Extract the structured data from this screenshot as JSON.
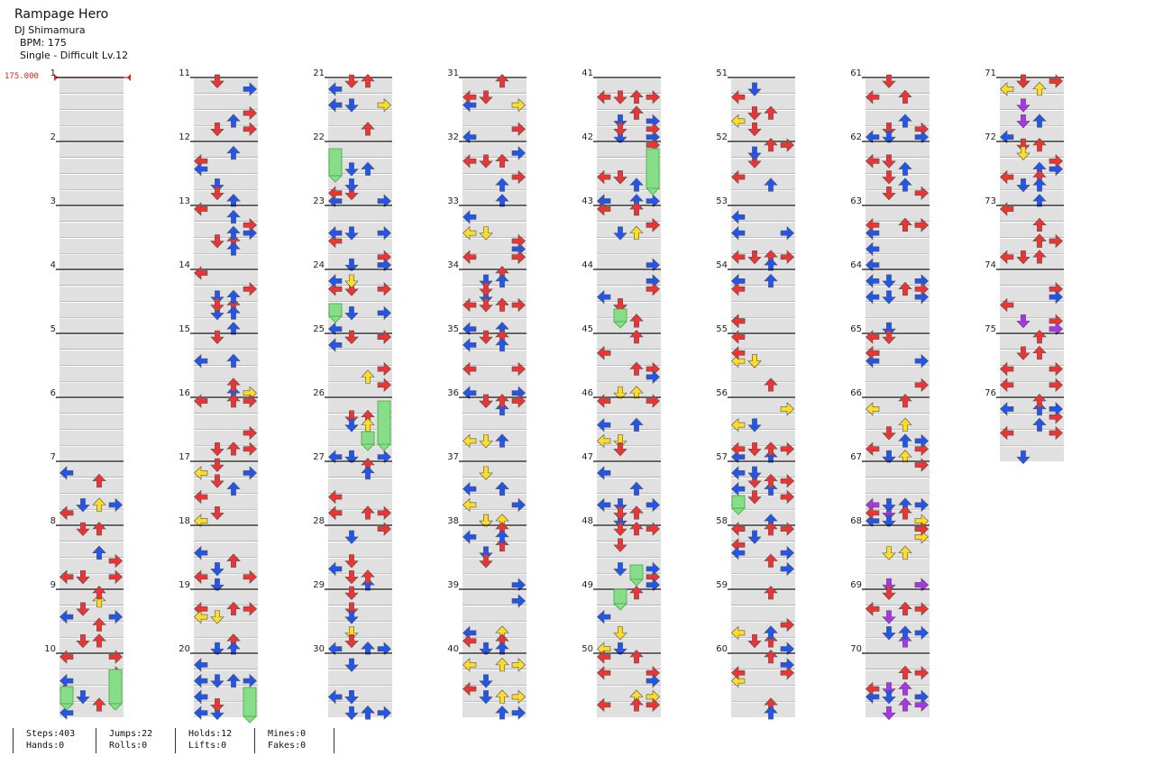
{
  "song": {
    "title": "Rampage Hero",
    "artist": "DJ Shimamura",
    "bpm_label": "BPM: 175",
    "difficulty_label": "Single - Difficult Lv.12"
  },
  "chart_view": {
    "bpm_change_label": "175.000",
    "measure_count": 76,
    "measures_per_column": 10,
    "colors": {
      "red_note": "#ee3333",
      "blue_note": "#2255ee",
      "yellow_note": "#ffdd22",
      "purple_note": "#aa33ee",
      "hold_body": "#88dd88",
      "hold_edge": "#44aa44",
      "row_shade": "#e0e0e0",
      "bpm_marker": "#e02020"
    },
    "note_density_pattern": [
      "red-dominant",
      "blue",
      "yellow",
      "purple"
    ]
  },
  "stats": {
    "steps": "Steps:403",
    "hands": "Hands:0",
    "jumps": "Jumps:22",
    "rolls": "Rolls:0",
    "holds": "Holds:12",
    "lifts": "Lifts:0",
    "mines": "Mines:0",
    "fakes": "Fakes:0"
  }
}
